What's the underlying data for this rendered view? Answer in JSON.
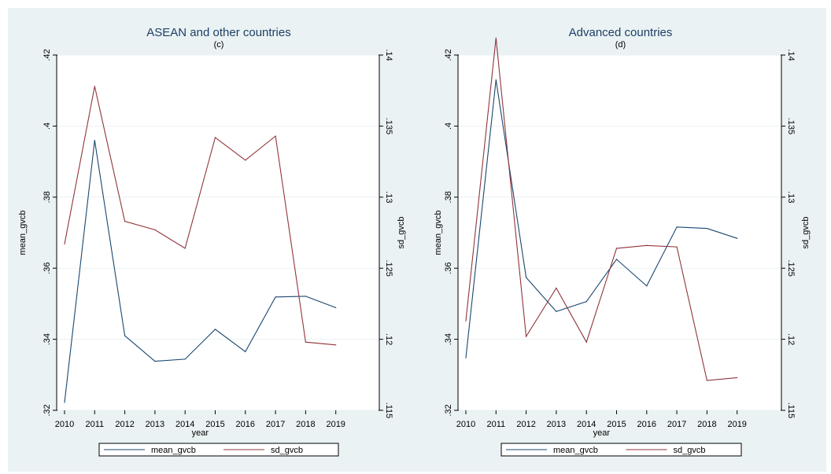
{
  "colors": {
    "mean": "#1a476f",
    "sd": "#90353b",
    "background": "#eaf2f3",
    "plot": "#ffffff",
    "grid": "#eaf2f3"
  },
  "chart_data": [
    {
      "type": "line",
      "title": "ASEAN and other countries",
      "subtitle": "(c)",
      "xlabel": "year",
      "ylabel_left": "mean_gvcb",
      "ylabel_right": "sd_gvcb",
      "x": [
        2010,
        2011,
        2012,
        2013,
        2014,
        2015,
        2016,
        2017,
        2018,
        2019
      ],
      "xticks": [
        "2010",
        "2011",
        "2012",
        "2013",
        "2014",
        "2015",
        "2016",
        "2017",
        "2018",
        "2019"
      ],
      "ylim_left": [
        0.32,
        0.42
      ],
      "yticks_left": [
        ".32",
        ".34",
        ".36",
        ".38",
        ".4",
        ".42"
      ],
      "ylim_right": [
        0.115,
        0.14
      ],
      "yticks_right": [
        ".115",
        ".12",
        ".125",
        ".13",
        ".135",
        ".14"
      ],
      "grid": true,
      "legend_position": "bottom",
      "series": [
        {
          "name": "mean_gvcb",
          "axis": "left",
          "values": [
            0.3222,
            0.396,
            0.341,
            0.3338,
            0.3344,
            0.3428,
            0.3365,
            0.3519,
            0.3521,
            0.3489
          ]
        },
        {
          "name": "sd_gvcb",
          "axis": "right",
          "values": [
            0.1267,
            0.1378,
            0.1283,
            0.1277,
            0.1264,
            0.1342,
            0.1326,
            0.1343,
            0.1198,
            0.1196
          ]
        }
      ]
    },
    {
      "type": "line",
      "title": "Advanced countries",
      "subtitle": "(d)",
      "xlabel": "year",
      "ylabel_left": "mean_gvcb",
      "ylabel_right": "sd_gvcb",
      "x": [
        2010,
        2011,
        2012,
        2013,
        2014,
        2015,
        2016,
        2017,
        2018,
        2019
      ],
      "xticks": [
        "2010",
        "2011",
        "2012",
        "2013",
        "2014",
        "2015",
        "2016",
        "2017",
        "2018",
        "2019"
      ],
      "ylim_left": [
        0.32,
        0.42
      ],
      "yticks_left": [
        ".32",
        ".34",
        ".36",
        ".38",
        ".4",
        ".42"
      ],
      "ylim_right": [
        0.115,
        0.14
      ],
      "yticks_right": [
        ".115",
        ".12",
        ".125",
        ".13",
        ".135",
        ".14"
      ],
      "grid": true,
      "legend_position": "bottom",
      "series": [
        {
          "name": "mean_gvcb",
          "axis": "left",
          "values": [
            0.3348,
            0.413,
            0.3574,
            0.3478,
            0.3506,
            0.3625,
            0.355,
            0.3716,
            0.3712,
            0.3684
          ]
        },
        {
          "name": "sd_gvcb",
          "axis": "right",
          "values": [
            0.1213,
            0.1412,
            0.1202,
            0.1236,
            0.1198,
            0.1264,
            0.1266,
            0.1265,
            0.1171,
            0.1173
          ]
        }
      ]
    }
  ]
}
